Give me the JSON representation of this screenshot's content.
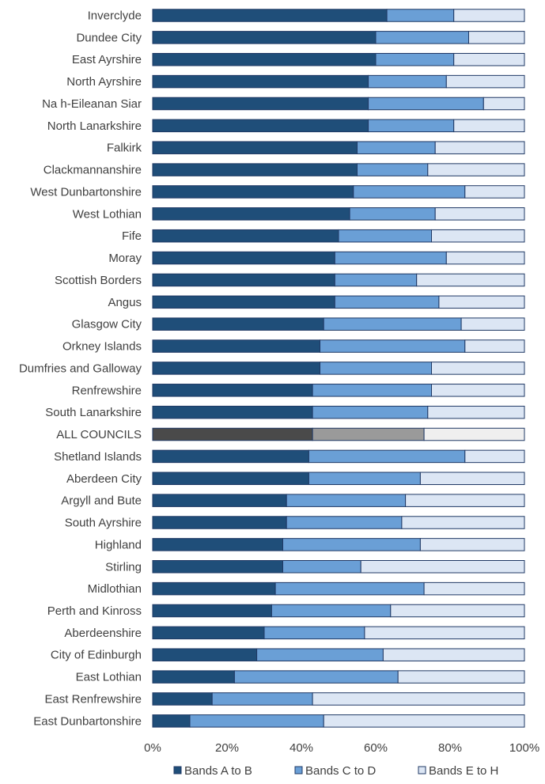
{
  "chart_data": {
    "type": "bar",
    "orientation": "horizontal",
    "stacked": true,
    "categories": [
      "Inverclyde",
      "Dundee City",
      "East Ayrshire",
      "North Ayrshire",
      "Na h-Eileanan Siar",
      "North Lanarkshire",
      "Falkirk",
      "Clackmannanshire",
      "West Dunbartonshire",
      "West Lothian",
      "Fife",
      "Moray",
      "Scottish Borders",
      "Angus",
      "Glasgow City",
      "Orkney Islands",
      "Dumfries and Galloway",
      "Renfrewshire",
      "South Lanarkshire",
      "ALL COUNCILS",
      "Shetland Islands",
      "Aberdeen City",
      "Argyll and Bute",
      "South Ayrshire",
      "Highland",
      "Stirling",
      "Midlothian",
      "Perth and Kinross",
      "Aberdeenshire",
      "City of Edinburgh",
      "East Lothian",
      "East Renfrewshire",
      "East Dunbartonshire"
    ],
    "series": [
      {
        "name": "Bands A to B",
        "color": "#1f4e79",
        "values": [
          63,
          60,
          60,
          58,
          58,
          58,
          55,
          55,
          54,
          53,
          50,
          49,
          49,
          49,
          46,
          45,
          45,
          43,
          43,
          43,
          42,
          42,
          36,
          36,
          35,
          35,
          33,
          32,
          30,
          28,
          22,
          16,
          10
        ]
      },
      {
        "name": "Bands C to D",
        "color": "#6a9fd6",
        "values": [
          18,
          25,
          21,
          21,
          31,
          23,
          21,
          19,
          30,
          23,
          25,
          30,
          22,
          28,
          37,
          39,
          30,
          32,
          31,
          30,
          42,
          30,
          32,
          31,
          37,
          21,
          40,
          32,
          27,
          34,
          44,
          27,
          36
        ]
      },
      {
        "name": "Bands E to H",
        "color": "#dce6f4",
        "values": [
          19,
          15,
          19,
          21,
          11,
          19,
          24,
          26,
          16,
          24,
          25,
          21,
          29,
          23,
          17,
          16,
          25,
          25,
          26,
          27,
          16,
          28,
          32,
          33,
          28,
          44,
          27,
          36,
          43,
          38,
          34,
          57,
          54
        ]
      }
    ],
    "highlight": {
      "category": "ALL COUNCILS",
      "colors": [
        "#4a4a4a",
        "#9a9a9a",
        "#efefef"
      ]
    },
    "border_color": "#1f3864",
    "xlim": [
      0,
      100
    ],
    "x_ticks": [
      "0%",
      "20%",
      "40%",
      "60%",
      "80%",
      "100%"
    ],
    "legend": {
      "placement": "bottom",
      "entries": [
        "Bands A to B",
        "Bands C to D",
        "Bands E to H"
      ]
    },
    "grid": false
  }
}
